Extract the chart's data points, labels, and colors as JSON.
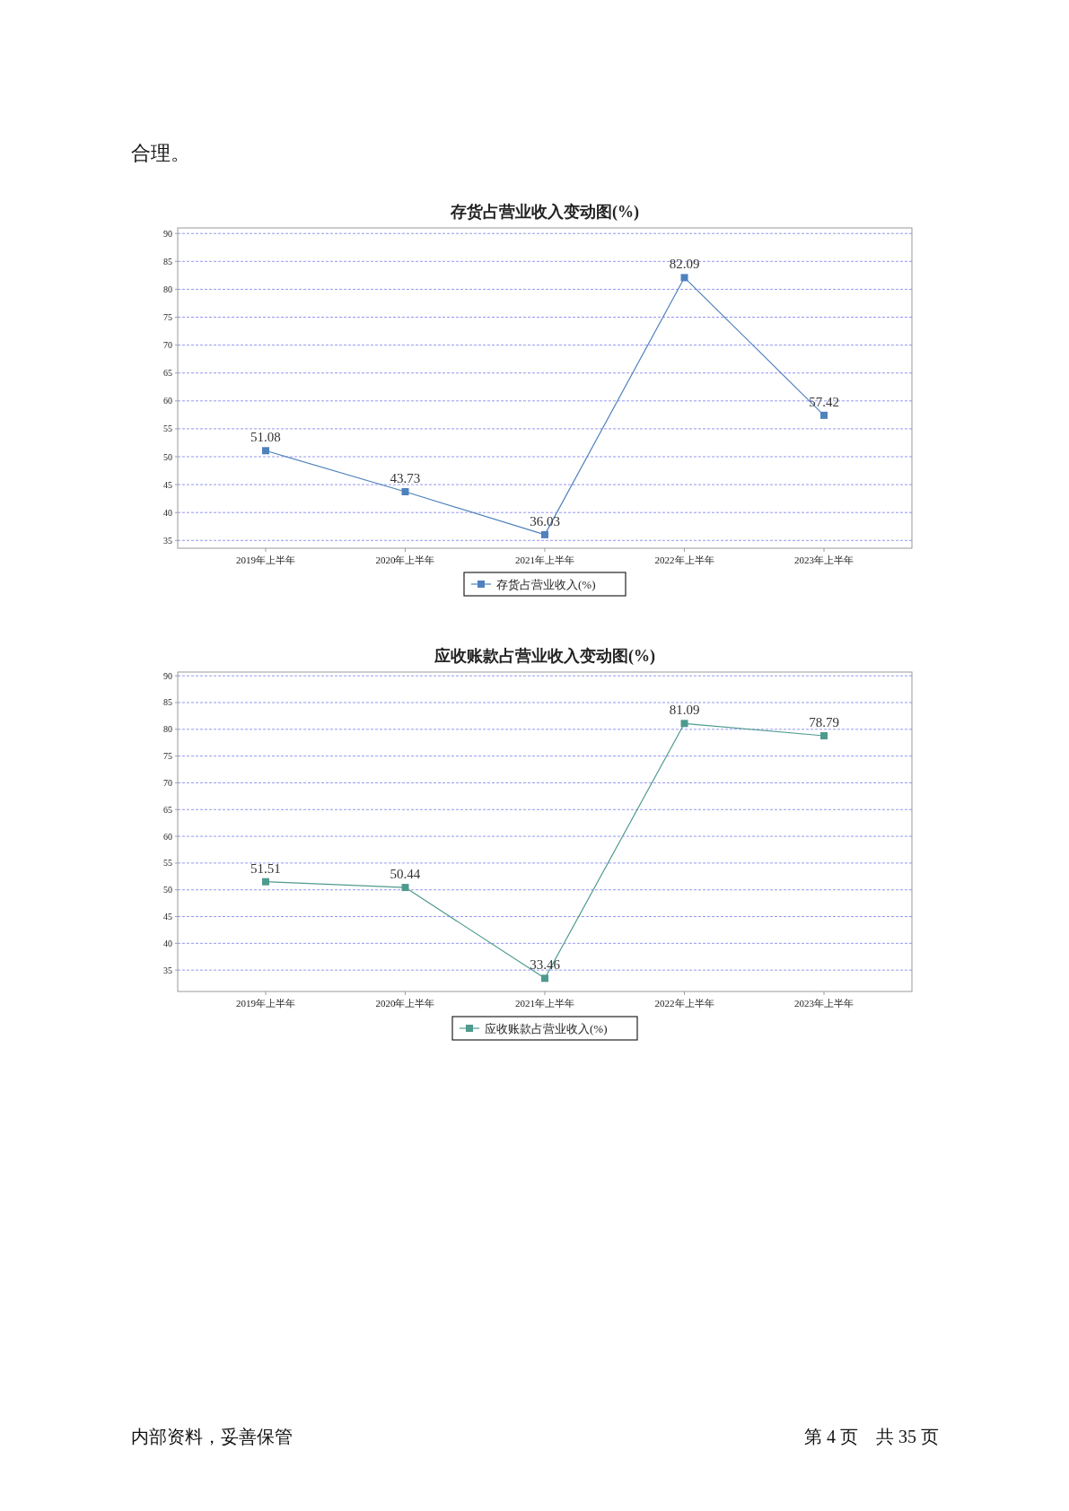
{
  "chart_data": [
    {
      "type": "line",
      "title": "存货占营业收入变动图(%)",
      "categories": [
        "2019年上半年",
        "2020年上半年",
        "2021年上半年",
        "2022年上半年",
        "2023年上半年"
      ],
      "series": [
        {
          "name": "存货占营业收入(%)",
          "color": "#4f81bd",
          "values": [
            51.08,
            43.73,
            36.03,
            82.09,
            57.42
          ]
        }
      ],
      "ylim": [
        33.6,
        91
      ],
      "yticks": [
        35,
        40,
        45,
        50,
        55,
        60,
        65,
        70,
        75,
        80,
        85,
        90
      ],
      "grid": "y",
      "legend": "bottom",
      "marker": "square",
      "data_labels": true,
      "annotations": [
        "合理。"
      ]
    },
    {
      "type": "line",
      "title": "应收账款占营业收入变动图(%)",
      "categories": [
        "2019年上半年",
        "2020年上半年",
        "2021年上半年",
        "2022年上半年",
        "2023年上半年"
      ],
      "series": [
        {
          "name": "应收账款占营业收入(%)",
          "color": "#4e9a8f",
          "values": [
            51.51,
            50.44,
            33.46,
            81.09,
            78.79
          ]
        }
      ],
      "ylim": [
        31,
        90.7
      ],
      "yticks": [
        35,
        40,
        45,
        50,
        55,
        60,
        65,
        70,
        75,
        80,
        85,
        90
      ],
      "grid": "y",
      "legend": "bottom",
      "marker": "square",
      "data_labels": true,
      "annotations": [
        "内部资料，妥善保管",
        "第 4 页　共 35 页"
      ]
    }
  ]
}
